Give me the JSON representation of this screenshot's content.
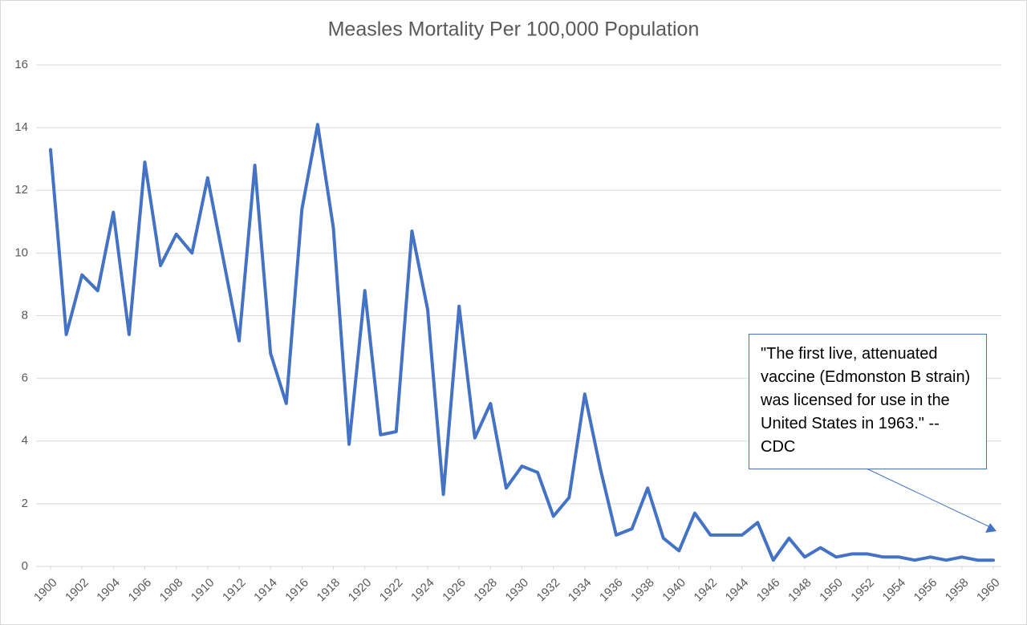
{
  "chart_data": {
    "type": "line",
    "title": "Measles Mortality Per 100,000 Population",
    "x": [
      1900,
      1901,
      1902,
      1903,
      1904,
      1905,
      1906,
      1907,
      1908,
      1909,
      1910,
      1911,
      1912,
      1913,
      1914,
      1915,
      1916,
      1917,
      1918,
      1919,
      1920,
      1921,
      1922,
      1923,
      1924,
      1925,
      1926,
      1927,
      1928,
      1929,
      1930,
      1931,
      1932,
      1933,
      1934,
      1935,
      1936,
      1937,
      1938,
      1939,
      1940,
      1941,
      1942,
      1943,
      1944,
      1945,
      1946,
      1947,
      1948,
      1949,
      1950,
      1951,
      1952,
      1953,
      1954,
      1955,
      1956,
      1957,
      1958,
      1959,
      1960
    ],
    "values": [
      13.3,
      7.4,
      9.3,
      8.8,
      11.3,
      7.4,
      12.9,
      9.6,
      10.6,
      10.0,
      12.4,
      9.8,
      7.2,
      12.8,
      6.8,
      5.2,
      11.4,
      14.1,
      10.8,
      3.9,
      8.8,
      4.2,
      4.3,
      10.7,
      8.2,
      2.3,
      8.3,
      4.1,
      5.2,
      2.5,
      3.2,
      3.0,
      1.6,
      2.2,
      5.5,
      3.1,
      1.0,
      1.2,
      2.5,
      0.9,
      0.5,
      1.7,
      1.0,
      1.0,
      1.0,
      1.4,
      0.2,
      0.9,
      0.3,
      0.6,
      0.3,
      0.4,
      0.4,
      0.3,
      0.3,
      0.2,
      0.3,
      0.2,
      0.3,
      0.2,
      0.2
    ],
    "color": "#4472c4",
    "xlim": [
      1900,
      1960
    ],
    "xticks": [
      1900,
      1902,
      1904,
      1906,
      1908,
      1910,
      1912,
      1914,
      1916,
      1918,
      1920,
      1922,
      1924,
      1926,
      1928,
      1930,
      1932,
      1934,
      1936,
      1938,
      1940,
      1942,
      1944,
      1946,
      1948,
      1950,
      1952,
      1954,
      1956,
      1958,
      1960
    ],
    "ylim": [
      0,
      16
    ],
    "yticks": [
      0,
      2,
      4,
      6,
      8,
      10,
      12,
      14,
      16
    ],
    "grid": true,
    "annotation": "\"The first live, attenuated vaccine (Edmonston B strain) was licensed for use in the United States in 1963.\" -- CDC"
  }
}
